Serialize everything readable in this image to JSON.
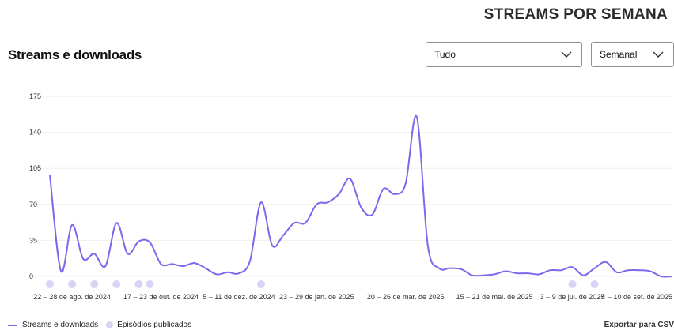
{
  "header": {
    "title": "STREAMS POR SEMANA"
  },
  "section": {
    "title": "Streams e downloads"
  },
  "filters": {
    "range": {
      "selected": "Tudo"
    },
    "period": {
      "selected": "Semanal"
    }
  },
  "legend": {
    "streams": "Streams e downloads",
    "episodes": "Episódios publicados"
  },
  "export_label": "Exportar para CSV",
  "colors": {
    "line": "#7B68EE",
    "episode_dot": "#D9D3F5",
    "grid": "#EFEFEF"
  },
  "chart_data": {
    "type": "line",
    "ylim": [
      0,
      175
    ],
    "yticks": [
      0,
      35,
      70,
      105,
      140,
      175
    ],
    "x_labels": [
      {
        "label": "22 – 28 de ago. de 2024",
        "index": 2
      },
      {
        "label": "17 – 23 de out. de 2024",
        "index": 10
      },
      {
        "label": "5 – 11 de dez. de 2024",
        "index": 17
      },
      {
        "label": "23 – 29 de jan. de 2025",
        "index": 24
      },
      {
        "label": "20 – 26 de mar. de 2025",
        "index": 32
      },
      {
        "label": "15 – 21 de mai. de 2025",
        "index": 40
      },
      {
        "label": "3 – 9 de jul. de 2025",
        "index": 47
      },
      {
        "label": "4 – 10 de set. de 2025",
        "index": 56
      }
    ],
    "series": [
      {
        "values": [
          99,
          5,
          50,
          17,
          22,
          10,
          52,
          22,
          34,
          33,
          12,
          12,
          10,
          13,
          8,
          2,
          4,
          3,
          15,
          72,
          30,
          40,
          52,
          52,
          70,
          72,
          80,
          95,
          67,
          60,
          85,
          80,
          90,
          155,
          30,
          8,
          8,
          7,
          1,
          1,
          2,
          5,
          3,
          3,
          2,
          6,
          6,
          9,
          1,
          8,
          14,
          4,
          6,
          6,
          5,
          0,
          0
        ]
      }
    ],
    "episode_indices": [
      0,
      2,
      4,
      6,
      8,
      9,
      19,
      47,
      49
    ]
  }
}
